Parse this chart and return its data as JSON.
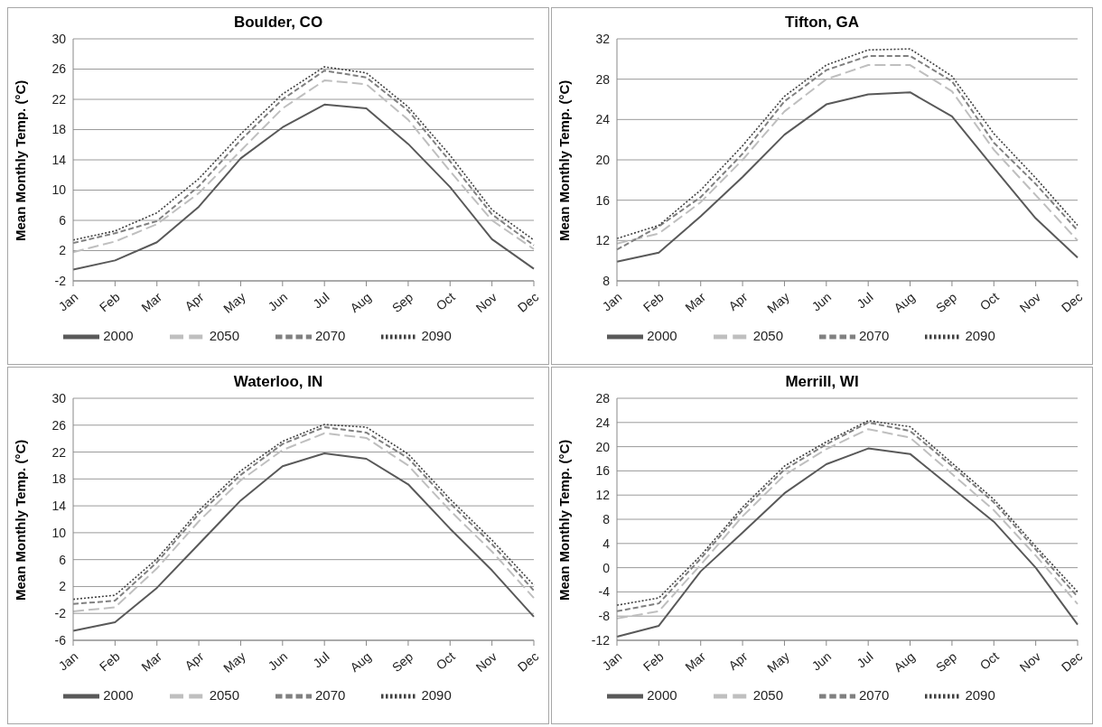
{
  "chart_data": [
    {
      "type": "line",
      "title": "Boulder, CO",
      "ylabel": "Mean Monthly Temp. (°C)",
      "categories": [
        "Jan",
        "Feb",
        "Mar",
        "Apr",
        "May",
        "Jun",
        "Jul",
        "Aug",
        "Sep",
        "Oct",
        "Nov",
        "Dec"
      ],
      "ylim": [
        -2,
        30
      ],
      "yticks": [
        -2,
        2,
        6,
        10,
        14,
        18,
        22,
        26,
        30
      ],
      "grid": "y",
      "legend": "bottom",
      "series": [
        {
          "name": "2000",
          "color": "#595959",
          "line_style": "solid",
          "values": [
            -0.5,
            0.7,
            3.1,
            7.8,
            14.2,
            18.3,
            21.3,
            20.8,
            16.1,
            10.4,
            3.5,
            -0.4
          ]
        },
        {
          "name": "2050",
          "color": "#bfbfbf",
          "line_style": "longdash",
          "values": [
            1.8,
            3.2,
            5.5,
            9.6,
            15.2,
            20.8,
            24.5,
            24.0,
            19.3,
            12.5,
            6.0,
            2.2
          ]
        },
        {
          "name": "2070",
          "color": "#808080",
          "line_style": "dashed",
          "values": [
            3.0,
            4.3,
            5.9,
            10.5,
            16.6,
            22.0,
            25.8,
            24.9,
            20.5,
            13.8,
            6.8,
            2.7
          ]
        },
        {
          "name": "2090",
          "color": "#404040",
          "line_style": "dotted",
          "values": [
            3.4,
            4.6,
            7.0,
            11.5,
            17.4,
            22.7,
            26.3,
            25.5,
            21.0,
            14.6,
            7.4,
            3.4
          ]
        }
      ]
    },
    {
      "type": "line",
      "title": "Tifton, GA",
      "ylabel": "Mean Monthly Temp. (°C)",
      "categories": [
        "Jan",
        "Feb",
        "Mar",
        "Apr",
        "May",
        "Jun",
        "Jul",
        "Aug",
        "Sep",
        "Oct",
        "Nov",
        "Dec"
      ],
      "ylim": [
        8,
        32
      ],
      "yticks": [
        8,
        12,
        16,
        20,
        24,
        28,
        32
      ],
      "grid": "y",
      "legend": "bottom",
      "series": [
        {
          "name": "2000",
          "color": "#595959",
          "line_style": "solid",
          "values": [
            9.9,
            10.8,
            14.4,
            18.3,
            22.5,
            25.5,
            26.5,
            26.7,
            24.3,
            19.2,
            14.2,
            10.3
          ]
        },
        {
          "name": "2050",
          "color": "#bfbfbf",
          "line_style": "longdash",
          "values": [
            11.7,
            12.7,
            15.8,
            20.0,
            24.8,
            28.0,
            29.4,
            29.4,
            26.8,
            21.0,
            16.5,
            12.0
          ]
        },
        {
          "name": "2070",
          "color": "#808080",
          "line_style": "dashed",
          "values": [
            11.1,
            13.4,
            16.3,
            20.6,
            25.8,
            28.9,
            30.3,
            30.3,
            27.8,
            21.7,
            17.6,
            13.0
          ]
        },
        {
          "name": "2090",
          "color": "#404040",
          "line_style": "dotted",
          "values": [
            12.2,
            13.5,
            17.0,
            21.4,
            26.3,
            29.4,
            30.9,
            31.0,
            28.3,
            22.6,
            18.2,
            13.5
          ]
        }
      ]
    },
    {
      "type": "line",
      "title": "Waterloo, IN",
      "ylabel": "Mean Monthly Temp. (°C)",
      "categories": [
        "Jan",
        "Feb",
        "Mar",
        "Apr",
        "May",
        "Jun",
        "Jul",
        "Aug",
        "Sep",
        "Oct",
        "Nov",
        "Dec"
      ],
      "ylim": [
        -6,
        30
      ],
      "yticks": [
        -6,
        -2,
        2,
        6,
        10,
        14,
        18,
        22,
        26,
        30
      ],
      "grid": "y",
      "legend": "bottom",
      "series": [
        {
          "name": "2000",
          "color": "#595959",
          "line_style": "solid",
          "values": [
            -4.6,
            -3.3,
            1.8,
            8.3,
            14.8,
            19.9,
            21.8,
            21.0,
            17.2,
            10.6,
            4.4,
            -2.5
          ]
        },
        {
          "name": "2050",
          "color": "#bfbfbf",
          "line_style": "longdash",
          "values": [
            -1.7,
            -1.1,
            4.7,
            11.7,
            17.8,
            22.3,
            24.8,
            24.1,
            20.0,
            13.3,
            7.2,
            0.3
          ]
        },
        {
          "name": "2070",
          "color": "#808080",
          "line_style": "dashed",
          "values": [
            -0.6,
            -0.1,
            5.6,
            12.8,
            18.6,
            23.2,
            25.7,
            24.9,
            21.1,
            14.4,
            8.3,
            1.4
          ]
        },
        {
          "name": "2090",
          "color": "#404040",
          "line_style": "dotted",
          "values": [
            0.1,
            0.7,
            6.1,
            13.3,
            19.2,
            23.6,
            26.1,
            25.7,
            21.7,
            15.0,
            8.9,
            2.2
          ]
        }
      ]
    },
    {
      "type": "line",
      "title": "Merrill, WI",
      "ylabel": "Mean Monthly Temp. (°C)",
      "categories": [
        "Jan",
        "Feb",
        "Mar",
        "Apr",
        "May",
        "Jun",
        "Jul",
        "Aug",
        "Sep",
        "Oct",
        "Nov",
        "Dec"
      ],
      "ylim": [
        -12,
        28
      ],
      "yticks": [
        -12,
        -8,
        -4,
        0,
        4,
        8,
        12,
        16,
        20,
        24,
        28
      ],
      "grid": "y",
      "legend": "bottom",
      "series": [
        {
          "name": "2000",
          "color": "#595959",
          "line_style": "solid",
          "values": [
            -11.4,
            -9.6,
            -0.6,
            5.8,
            12.3,
            17.1,
            19.7,
            18.8,
            13.2,
            7.6,
            0.0,
            -9.4
          ]
        },
        {
          "name": "2050",
          "color": "#bfbfbf",
          "line_style": "longdash",
          "values": [
            -8.4,
            -7.2,
            0.5,
            8.5,
            15.3,
            19.6,
            22.9,
            21.5,
            15.5,
            9.5,
            2.0,
            -6.0
          ]
        },
        {
          "name": "2070",
          "color": "#808080",
          "line_style": "dashed",
          "values": [
            -7.2,
            -5.9,
            1.5,
            9.5,
            16.2,
            20.4,
            24.0,
            22.6,
            16.8,
            10.8,
            3.0,
            -4.8
          ]
        },
        {
          "name": "2090",
          "color": "#404040",
          "line_style": "dotted",
          "values": [
            -6.2,
            -5.0,
            2.0,
            10.0,
            16.8,
            20.8,
            24.3,
            23.3,
            17.3,
            11.3,
            3.5,
            -4.0
          ]
        }
      ]
    }
  ]
}
